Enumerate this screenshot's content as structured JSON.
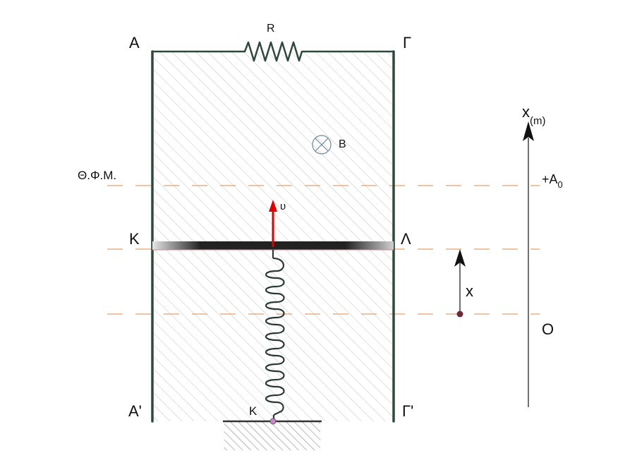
{
  "labels": {
    "corner_top_left": "Α",
    "corner_top_right": "Γ",
    "corner_bottom_left": "Α'",
    "corner_bottom_right": "Γ'",
    "rod_left": "Κ",
    "rod_right": "Λ",
    "resistor": "R",
    "field": "B",
    "velocity": "υ",
    "equilibrium": "Θ.Φ.Μ.",
    "amplitude": "+A",
    "amplitude_sub": "0",
    "displacement": "x",
    "origin": "O",
    "axis": "x",
    "axis_unit": "(m)",
    "spring": "K"
  },
  "colors": {
    "rail": "#2f4a3c",
    "guide": "#e0a070",
    "velocity_arrow": "#e00000",
    "spring": "#2b3a36",
    "hatch": "#b8b8b8",
    "dot": "#6a2a3a"
  },
  "icons": {
    "field": "into-page-circle-x-icon"
  }
}
